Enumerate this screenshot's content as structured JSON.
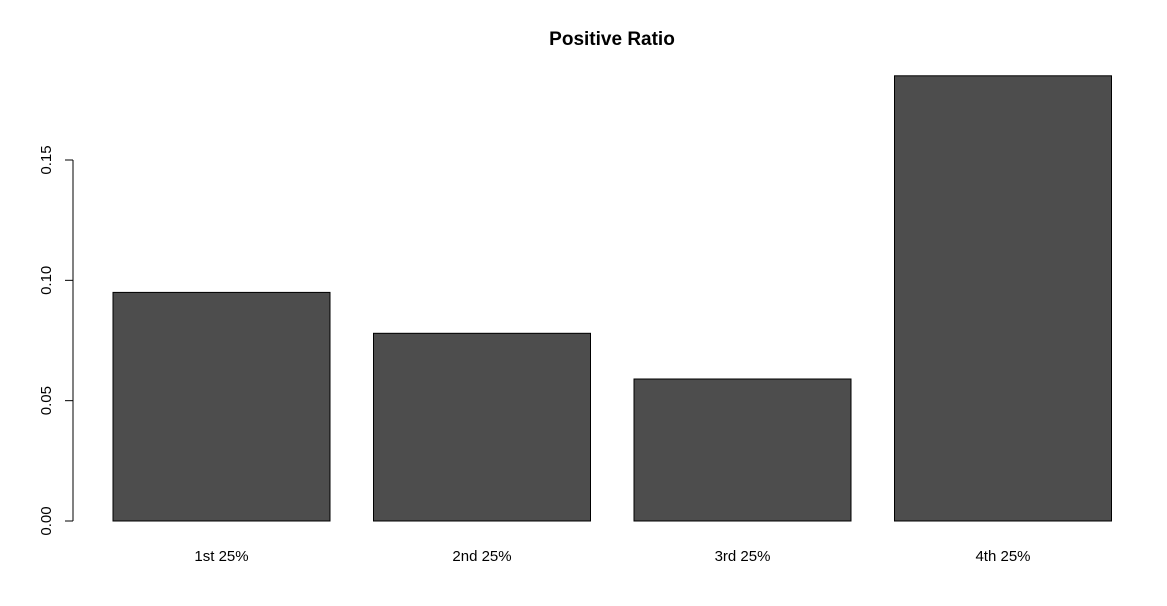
{
  "chart_data": {
    "type": "bar",
    "title": "Positive Ratio",
    "xlabel": "",
    "ylabel": "",
    "categories": [
      "1st 25%",
      "2nd 25%",
      "3rd 25%",
      "4th 25%"
    ],
    "values": [
      0.095,
      0.078,
      0.059,
      0.185
    ],
    "ylim": [
      0,
      0.185
    ],
    "yticks": [
      0.0,
      0.05,
      0.1,
      0.15
    ],
    "ytick_labels": [
      "0.00",
      "0.05",
      "0.10",
      "0.15"
    ],
    "bar_color": "#4d4d4d",
    "bar_border_color": "#000000",
    "grid": false,
    "legend": "none"
  }
}
